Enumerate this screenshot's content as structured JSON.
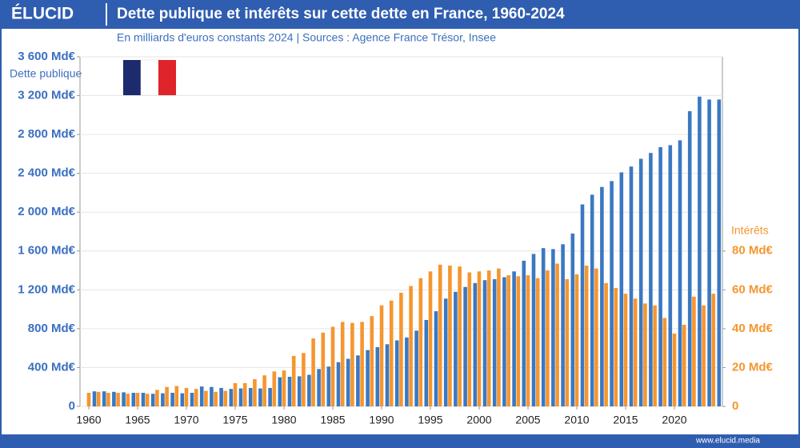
{
  "brand": "ÉLUCID",
  "footer": "www.elucid.media",
  "chart_data": {
    "type": "bar",
    "title": "Dette publique et intérêts sur cette dette en France, 1960-2024",
    "subtitle": "En milliards d'euros constants 2024  |  Sources : Agence France Trésor, Insee",
    "y_label": "Dette publique",
    "y2_label": "Intérêts",
    "categories": [
      "1960",
      null,
      null,
      null,
      null,
      "1965",
      null,
      null,
      null,
      null,
      "1970",
      null,
      null,
      null,
      null,
      "1975",
      null,
      null,
      null,
      null,
      "1980",
      null,
      null,
      null,
      null,
      "1985",
      null,
      null,
      null,
      null,
      "1990",
      null,
      null,
      null,
      null,
      "1995",
      null,
      null,
      null,
      null,
      "2000",
      null,
      null,
      null,
      null,
      "2005",
      null,
      null,
      null,
      null,
      "2010",
      null,
      null,
      null,
      null,
      "2015",
      null,
      null,
      null,
      null,
      "2020",
      null,
      null,
      null,
      null
    ],
    "series": [
      {
        "name": "Dette publique",
        "color": "#3b78c2",
        "values": [
          155,
          155,
          150,
          145,
          140,
          140,
          130,
          135,
          140,
          135,
          140,
          205,
          200,
          190,
          180,
          185,
          190,
          185,
          190,
          300,
          305,
          310,
          325,
          385,
          410,
          455,
          490,
          525,
          580,
          610,
          640,
          680,
          710,
          780,
          890,
          980,
          1110,
          1180,
          1230,
          1270,
          1300,
          1310,
          1330,
          1390,
          1500,
          1570,
          1630,
          1620,
          1670,
          1780,
          2080,
          2180,
          2260,
          2320,
          2410,
          2470,
          2550,
          2610,
          2670,
          2690,
          2740,
          3040,
          3190,
          3160,
          3160
        ]
      },
      {
        "name": "Intérêts",
        "color": "#f5962f",
        "axis": "y2",
        "values": [
          7,
          7.5,
          7,
          7,
          6.5,
          7,
          6.5,
          8.5,
          10,
          10.5,
          9.5,
          9,
          8,
          7.5,
          8,
          12,
          12,
          14,
          16,
          18,
          18.5,
          26,
          27.5,
          35,
          38,
          41,
          43.5,
          43,
          43.5,
          46.5,
          52,
          54.5,
          58.5,
          62,
          66,
          69.5,
          73,
          72.5,
          72,
          69,
          69.5,
          70,
          71,
          67.5,
          67,
          67.5,
          66,
          70,
          73.5,
          65.5,
          68,
          72.5,
          71,
          63.5,
          61,
          58,
          55.5,
          53,
          52,
          45.5,
          37.5,
          42,
          56.5,
          52,
          58
        ]
      }
    ],
    "ylim": [
      0,
      3600
    ],
    "yticks": [
      0,
      {
        "value": 400,
        "label": "400 Md€"
      },
      {
        "value": 800,
        "label": "800 Md€"
      },
      {
        "value": 1200,
        "label": "1 200 Md€"
      },
      {
        "value": 1600,
        "label": "1 600 Md€"
      },
      {
        "value": 2000,
        "label": "2 000 Md€"
      },
      {
        "value": 2400,
        "label": "2 400 Md€"
      },
      {
        "value": 2800,
        "label": "2 800 Md€"
      },
      {
        "value": 3200,
        "label": "3 200 Md€"
      },
      {
        "value": 3600,
        "label": "3 600 Md€"
      }
    ],
    "y2lim": [
      0,
      180
    ],
    "y2ticks": [
      0,
      {
        "value": 20,
        "label": "20 Md€"
      },
      {
        "value": 40,
        "label": "40 Md€"
      },
      {
        "value": 60,
        "label": "60 Md€"
      },
      {
        "value": 80,
        "label": "80 Md€"
      }
    ],
    "grid": true
  }
}
